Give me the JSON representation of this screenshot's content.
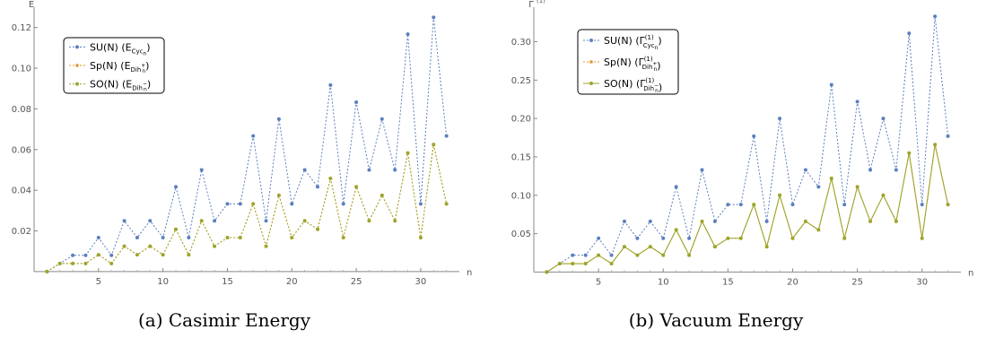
{
  "chart_data": [
    {
      "type": "line",
      "caption": "(a) Casimir Energy",
      "xlabel": "n",
      "ylabel": "E",
      "xlim": [
        0,
        33
      ],
      "ylim": [
        -0.004,
        0.13
      ],
      "xticks": [
        5,
        10,
        15,
        20,
        25,
        30
      ],
      "yticks": [
        0.02,
        0.04,
        0.06,
        0.08,
        0.1,
        0.12
      ],
      "ytick_labels": [
        "0.02",
        "0.04",
        "0.06",
        "0.08",
        "0.10",
        "0.12"
      ],
      "legend": {
        "placement": "top-left"
      },
      "series": [
        {
          "name": "SU(N) (E_Cyc_n)",
          "legend_main": "SU(N) (E",
          "legend_sub": "Cyc",
          "legend_subsub": "n",
          "legend_sup": "",
          "legend_close": ")",
          "color": "#5b7fbf",
          "style": "dotted",
          "marker": "circle",
          "x": [
            1,
            2,
            3,
            4,
            5,
            6,
            7,
            8,
            9,
            10,
            11,
            12,
            13,
            14,
            15,
            16,
            17,
            18,
            19,
            20,
            21,
            22,
            23,
            24,
            25,
            26,
            27,
            28,
            29,
            30,
            31,
            32
          ],
          "values": [
            0,
            0.004,
            0.008,
            0.008,
            0.0167,
            0.008,
            0.025,
            0.0167,
            0.025,
            0.0167,
            0.0417,
            0.0167,
            0.05,
            0.025,
            0.0333,
            0.0333,
            0.0667,
            0.025,
            0.075,
            0.0333,
            0.05,
            0.0417,
            0.0917,
            0.0333,
            0.0833,
            0.05,
            0.075,
            0.05,
            0.1167,
            0.0333,
            0.125,
            0.0667
          ]
        },
        {
          "name": "Sp(N) (E_Dih+_n)",
          "legend_main": "Sp(N) (E",
          "legend_sub": "Dih",
          "legend_subsub": "n",
          "legend_sup": "+",
          "legend_close": ")",
          "color": "#e0962a",
          "style": "dotted",
          "marker": "square",
          "x": [
            1,
            2,
            3,
            4,
            5,
            6,
            7,
            8,
            9,
            10,
            11,
            12,
            13,
            14,
            15,
            16,
            17,
            18,
            19,
            20,
            21,
            22,
            23,
            24,
            25,
            26,
            27,
            28,
            29,
            30,
            31,
            32
          ],
          "values": [
            0,
            0.004,
            0.004,
            0.004,
            0.0083,
            0.004,
            0.0125,
            0.0083,
            0.0125,
            0.0083,
            0.0208,
            0.0083,
            0.025,
            0.0125,
            0.0167,
            0.0167,
            0.0333,
            0.0125,
            0.0375,
            0.0167,
            0.025,
            0.0208,
            0.0458,
            0.0167,
            0.0417,
            0.025,
            0.0375,
            0.025,
            0.0583,
            0.0167,
            0.0625,
            0.0333
          ]
        },
        {
          "name": "SO(N) (E_Dih-_n)",
          "legend_main": "SO(N) (E",
          "legend_sub": "Dih",
          "legend_subsub": "n",
          "legend_sup": "−",
          "legend_close": ")",
          "color": "#9da52a",
          "style": "dotted",
          "marker": "circle",
          "x": [
            1,
            2,
            3,
            4,
            5,
            6,
            7,
            8,
            9,
            10,
            11,
            12,
            13,
            14,
            15,
            16,
            17,
            18,
            19,
            20,
            21,
            22,
            23,
            24,
            25,
            26,
            27,
            28,
            29,
            30,
            31,
            32
          ],
          "values": [
            0,
            0.004,
            0.004,
            0.004,
            0.0083,
            0.004,
            0.0125,
            0.0083,
            0.0125,
            0.0083,
            0.0208,
            0.0083,
            0.025,
            0.0125,
            0.0167,
            0.0167,
            0.0333,
            0.0125,
            0.0375,
            0.0167,
            0.025,
            0.0208,
            0.0458,
            0.0167,
            0.0417,
            0.025,
            0.0375,
            0.025,
            0.0583,
            0.0167,
            0.0625,
            0.0333
          ]
        }
      ]
    },
    {
      "type": "line",
      "caption": "(b) Vacuum Energy",
      "xlabel": "n",
      "ylabel": "Γ(1)",
      "ylabel_main": "Γ",
      "ylabel_sup": "(1)",
      "xlim": [
        0,
        33
      ],
      "ylim": [
        -0.01,
        0.345
      ],
      "xticks": [
        5,
        10,
        15,
        20,
        25,
        30
      ],
      "yticks": [
        0.05,
        0.1,
        0.15,
        0.2,
        0.25,
        0.3
      ],
      "ytick_labels": [
        "0.05",
        "0.10",
        "0.15",
        "0.20",
        "0.25",
        "0.30"
      ],
      "legend": {
        "placement": "top-left"
      },
      "series": [
        {
          "name": "SU(N) (Γ(1)_Cyc_n)",
          "legend_main": "SU(N) (Γ",
          "legend_sub": "Cyc",
          "legend_subsub": "n",
          "legend_sup": "(1)",
          "legend_close": ")",
          "color": "#5b7fbf",
          "style": "dotted",
          "marker": "circle",
          "x": [
            1,
            2,
            3,
            4,
            5,
            6,
            7,
            8,
            9,
            10,
            11,
            12,
            13,
            14,
            15,
            16,
            17,
            18,
            19,
            20,
            21,
            22,
            23,
            24,
            25,
            26,
            27,
            28,
            29,
            30,
            31,
            32
          ],
          "values": [
            0,
            0.011,
            0.022,
            0.022,
            0.044,
            0.022,
            0.066,
            0.044,
            0.066,
            0.044,
            0.111,
            0.044,
            0.133,
            0.066,
            0.088,
            0.088,
            0.177,
            0.066,
            0.2,
            0.088,
            0.133,
            0.111,
            0.244,
            0.088,
            0.222,
            0.133,
            0.2,
            0.133,
            0.311,
            0.088,
            0.333,
            0.177
          ]
        },
        {
          "name": "Sp(N) (Γ(1)_Dih+_n)",
          "legend_main": "Sp(N) (Γ",
          "legend_sub": "Dih",
          "legend_subsub": "n",
          "legend_sup": "(1)",
          "legend_supsign": "+",
          "legend_close": ")",
          "color": "#e0962a",
          "style": "dotted",
          "marker": "square",
          "x": [
            1,
            2,
            3,
            4,
            5,
            6,
            7,
            8,
            9,
            10,
            11,
            12,
            13,
            14,
            15,
            16,
            17,
            18,
            19,
            20,
            21,
            22,
            23,
            24,
            25,
            26,
            27,
            28,
            29,
            30,
            31,
            32
          ],
          "values": [
            0,
            0.011,
            0.011,
            0.011,
            0.022,
            0.011,
            0.033,
            0.022,
            0.033,
            0.022,
            0.055,
            0.022,
            0.066,
            0.033,
            0.044,
            0.044,
            0.088,
            0.033,
            0.1,
            0.044,
            0.066,
            0.055,
            0.122,
            0.044,
            0.111,
            0.066,
            0.1,
            0.066,
            0.155,
            0.044,
            0.166,
            0.088
          ]
        },
        {
          "name": "SO(N) (Γ(1)_Dih-_n)",
          "legend_main": "SO(N) (Γ",
          "legend_sub": "Dih",
          "legend_subsub": "n",
          "legend_sup": "(1)",
          "legend_supsign": "−",
          "legend_close": ")",
          "color": "#9da52a",
          "style": "solid",
          "marker": "circle",
          "x": [
            1,
            2,
            3,
            4,
            5,
            6,
            7,
            8,
            9,
            10,
            11,
            12,
            13,
            14,
            15,
            16,
            17,
            18,
            19,
            20,
            21,
            22,
            23,
            24,
            25,
            26,
            27,
            28,
            29,
            30,
            31,
            32
          ],
          "values": [
            0,
            0.011,
            0.011,
            0.011,
            0.022,
            0.011,
            0.033,
            0.022,
            0.033,
            0.022,
            0.055,
            0.022,
            0.066,
            0.033,
            0.044,
            0.044,
            0.088,
            0.033,
            0.1,
            0.044,
            0.066,
            0.055,
            0.122,
            0.044,
            0.111,
            0.066,
            0.1,
            0.066,
            0.155,
            0.044,
            0.166,
            0.088
          ]
        }
      ]
    }
  ]
}
